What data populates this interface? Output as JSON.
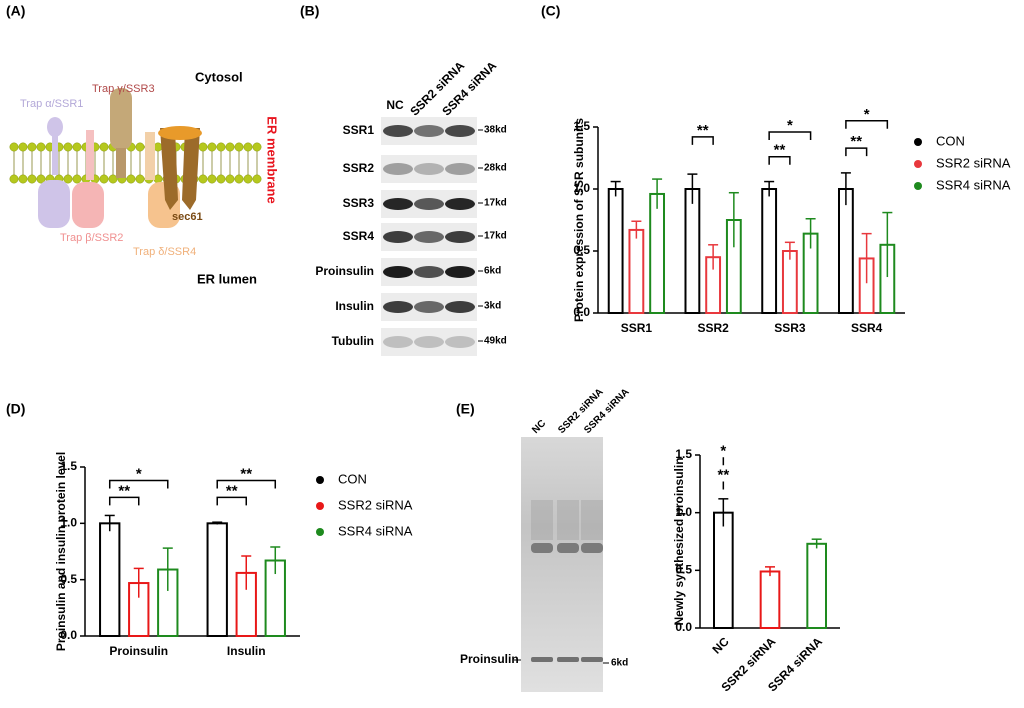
{
  "panel_labels": [
    "(A)",
    "(B)",
    "(C)",
    "(D)",
    "(E)"
  ],
  "diagram": {
    "cytosol": "Cytosol",
    "er_lumen": "ER lumen",
    "membrane": "ER membrane",
    "trap_alpha": "Trap α/SSR1",
    "trap_gamma": "Trap γ/SSR3",
    "trap_beta": "Trap β/SSR2",
    "trap_delta": "Trap δ/SSR4",
    "sec61": "sec61"
  },
  "blot": {
    "lanes": [
      "NC",
      "SSR2 siRNA",
      "SSR4 siRNA"
    ],
    "rows": [
      {
        "label": "SSR1",
        "size": "38kd"
      },
      {
        "label": "SSR2",
        "size": "28kd"
      },
      {
        "label": "SSR3",
        "size": "17kd"
      },
      {
        "label": "SSR4",
        "size": "17kd"
      },
      {
        "label": "Proinsulin",
        "size": "6kd"
      },
      {
        "label": "Insulin",
        "size": "3kd"
      },
      {
        "label": "Tubulin",
        "size": "49kd"
      }
    ]
  },
  "gel": {
    "lanes": [
      "NC",
      "SSR2 siRNA",
      "SSR4 siRNA"
    ],
    "band": "Proinsulin",
    "size": "6kd"
  },
  "chart_data": [
    {
      "type": "bar",
      "ylabel": "Protein expression of SSR subunits",
      "categories": [
        "SSR1",
        "SSR2",
        "SSR3",
        "SSR4"
      ],
      "series": [
        {
          "name": "CON",
          "color": "#000000",
          "values": [
            1,
            1,
            1,
            1
          ],
          "errors": [
            0.06,
            0.12,
            0.06,
            0.13
          ]
        },
        {
          "name": "SSR2 siRNA",
          "color": "#e8383d",
          "values": [
            0.67,
            0.45,
            0.5,
            0.44
          ],
          "errors": [
            0.07,
            0.1,
            0.07,
            0.2
          ]
        },
        {
          "name": "SSR4 siRNA",
          "color": "#1e8a1e",
          "values": [
            0.96,
            0.75,
            0.64,
            0.55
          ],
          "errors": [
            0.12,
            0.22,
            0.12,
            0.26
          ]
        }
      ],
      "ylim": [
        0,
        1.5
      ],
      "yticks": [
        {
          "value": 0,
          "label": "0.0"
        },
        0.5,
        {
          "value": 1,
          "label": "1.0"
        },
        1.5
      ],
      "annotations": [
        "**",
        "**",
        "*",
        "**",
        "*"
      ],
      "legend": "right"
    },
    {
      "type": "bar",
      "ylabel": "Proinsulin and insulin protein level",
      "categories": [
        "Proinsulin",
        "Insulin"
      ],
      "series": [
        {
          "name": "CON",
          "color": "#000000",
          "values": [
            1,
            1
          ],
          "errors": [
            0.07,
            0.01
          ]
        },
        {
          "name": "SSR2 siRNA",
          "color": "#e81818",
          "values": [
            0.47,
            0.56
          ],
          "errors": [
            0.13,
            0.15
          ]
        },
        {
          "name": "SSR4 siRNA",
          "color": "#1e8a1e",
          "values": [
            0.59,
            0.67
          ],
          "errors": [
            0.19,
            0.12
          ]
        }
      ],
      "ylim": [
        0,
        1.5
      ],
      "yticks": [
        {
          "value": 0,
          "label": "0.0"
        },
        0.5,
        {
          "value": 1,
          "label": "1.0"
        },
        1.5
      ],
      "annotations": [
        "**",
        "*",
        "**",
        "**"
      ],
      "legend": "right"
    },
    {
      "type": "bar",
      "ylabel": "Newly synthesized proinsulin",
      "categories": [
        "NC",
        "SSR2 siRNA",
        "SSR4 siRNA"
      ],
      "values": [
        1,
        0.49,
        0.73
      ],
      "errors": [
        0.12,
        0.04,
        0.04
      ],
      "colors": [
        "#000000",
        "#e81818",
        "#1e8a1e"
      ],
      "ylim": [
        0,
        1.5
      ],
      "yticks": [
        {
          "value": 0,
          "label": "0.0"
        },
        0.5,
        {
          "value": 1,
          "label": "1.0"
        },
        1.5
      ],
      "annotations": [
        "**",
        "*"
      ]
    }
  ]
}
